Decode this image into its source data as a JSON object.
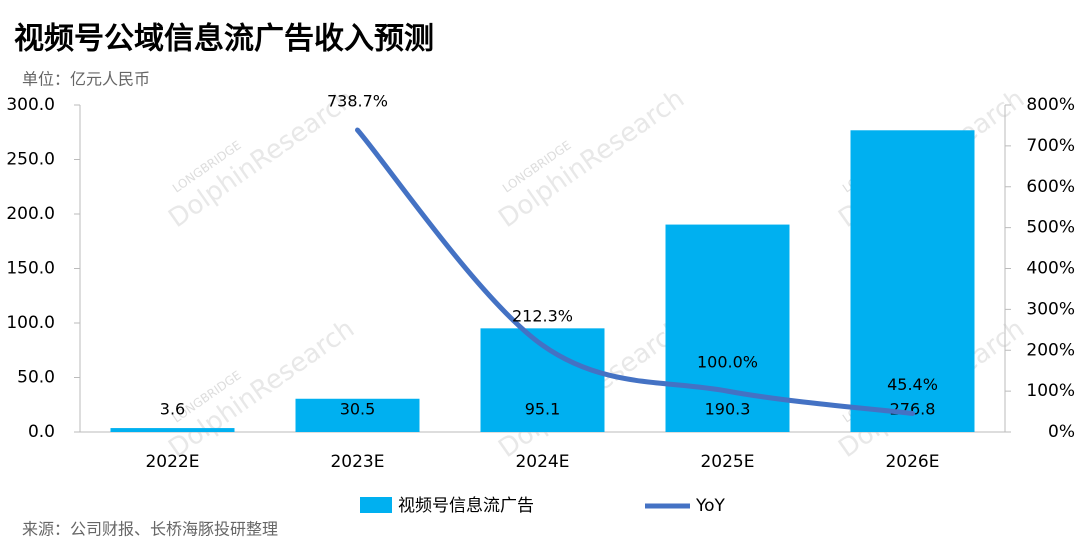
{
  "chart_data": {
    "type": "bar-line",
    "title": "视频号公域信息流广告收入预测",
    "subtitle": "单位：亿元人民币",
    "source": "来源：公司财报、长桥海豚投研整理",
    "watermark": [
      "LONGBRIDGE",
      "DolphinResearch"
    ],
    "categories": [
      "2022E",
      "2023E",
      "2024E",
      "2025E",
      "2026E"
    ],
    "series": [
      {
        "name": "视频号信息流广告",
        "color": "#00b0f0",
        "type": "bar",
        "values": [
          3.6,
          30.5,
          95.1,
          190.3,
          276.8
        ]
      },
      {
        "name": "YoY",
        "color": "#4472c4",
        "type": "line",
        "axis": "y2",
        "values": [
          null,
          738.7,
          212.3,
          100.0,
          45.4
        ],
        "value_labels": [
          null,
          "738.7%",
          "212.3%",
          "100.0%",
          "45.4%"
        ]
      }
    ],
    "ylim": [
      0,
      300
    ],
    "yticks": [
      {
        "value": 0,
        "label": "0.0"
      },
      {
        "value": 50,
        "label": "50.0"
      },
      {
        "value": 100,
        "label": "100.0"
      },
      {
        "value": 150,
        "label": "150.0"
      },
      {
        "value": 200,
        "label": "200.0"
      },
      {
        "value": 250,
        "label": "250.0"
      },
      {
        "value": 300,
        "label": "300.0"
      }
    ],
    "y2lim": [
      0,
      800
    ],
    "y2ticks": [
      {
        "value": 0,
        "label": "0%"
      },
      {
        "value": 100,
        "label": "100%"
      },
      {
        "value": 200,
        "label": "200%"
      },
      {
        "value": 300,
        "label": "300%"
      },
      {
        "value": 400,
        "label": "400%"
      },
      {
        "value": 500,
        "label": "500%"
      },
      {
        "value": 600,
        "label": "600%"
      },
      {
        "value": 700,
        "label": "700%"
      },
      {
        "value": 800,
        "label": "800%"
      }
    ],
    "grid": false
  }
}
